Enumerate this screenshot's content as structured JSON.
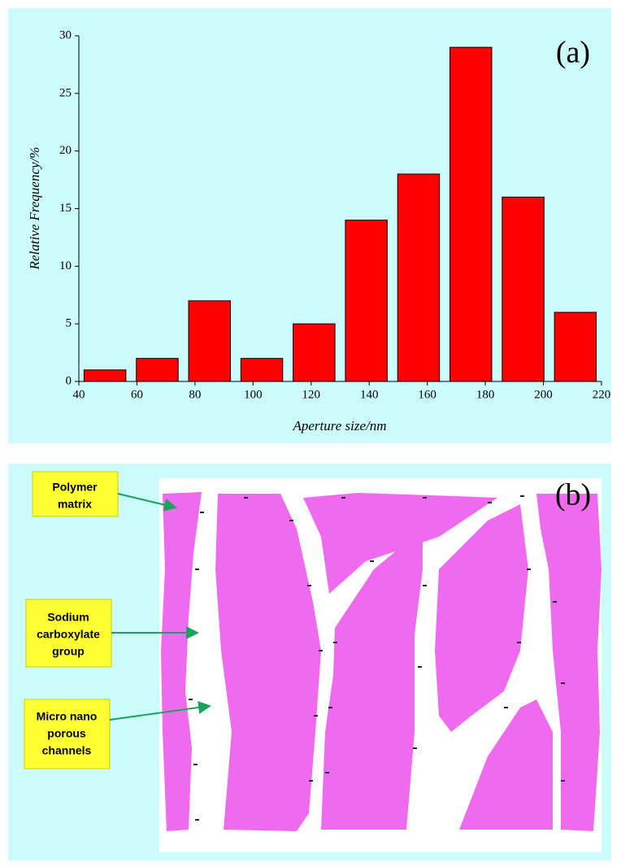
{
  "chart_data": {
    "type": "histogram",
    "panel_label": "(a)",
    "x_label": "Aperture size/nm",
    "y_label": "Relative Frequency/%",
    "bins": [
      40,
      58,
      76,
      94,
      112,
      130,
      148,
      166,
      184,
      202,
      220
    ],
    "values": [
      1,
      2,
      7,
      2,
      5,
      14,
      18,
      29,
      16,
      6
    ],
    "color": "#ff0000",
    "xlim": [
      40,
      220
    ],
    "xticks": [
      40,
      60,
      80,
      100,
      120,
      140,
      160,
      180,
      200,
      220
    ],
    "ylim": [
      0,
      30
    ],
    "yticks": [
      0,
      5,
      10,
      15,
      20,
      25,
      30
    ],
    "grid": false
  },
  "diagram": {
    "panel_label": "(b)",
    "labels": [
      {
        "lines": [
          "Polymer",
          "matrix"
        ]
      },
      {
        "lines": [
          "Sodium",
          "carboxylate",
          "group"
        ]
      },
      {
        "lines": [
          "Micro nano",
          "porous",
          "channels"
        ]
      }
    ]
  }
}
